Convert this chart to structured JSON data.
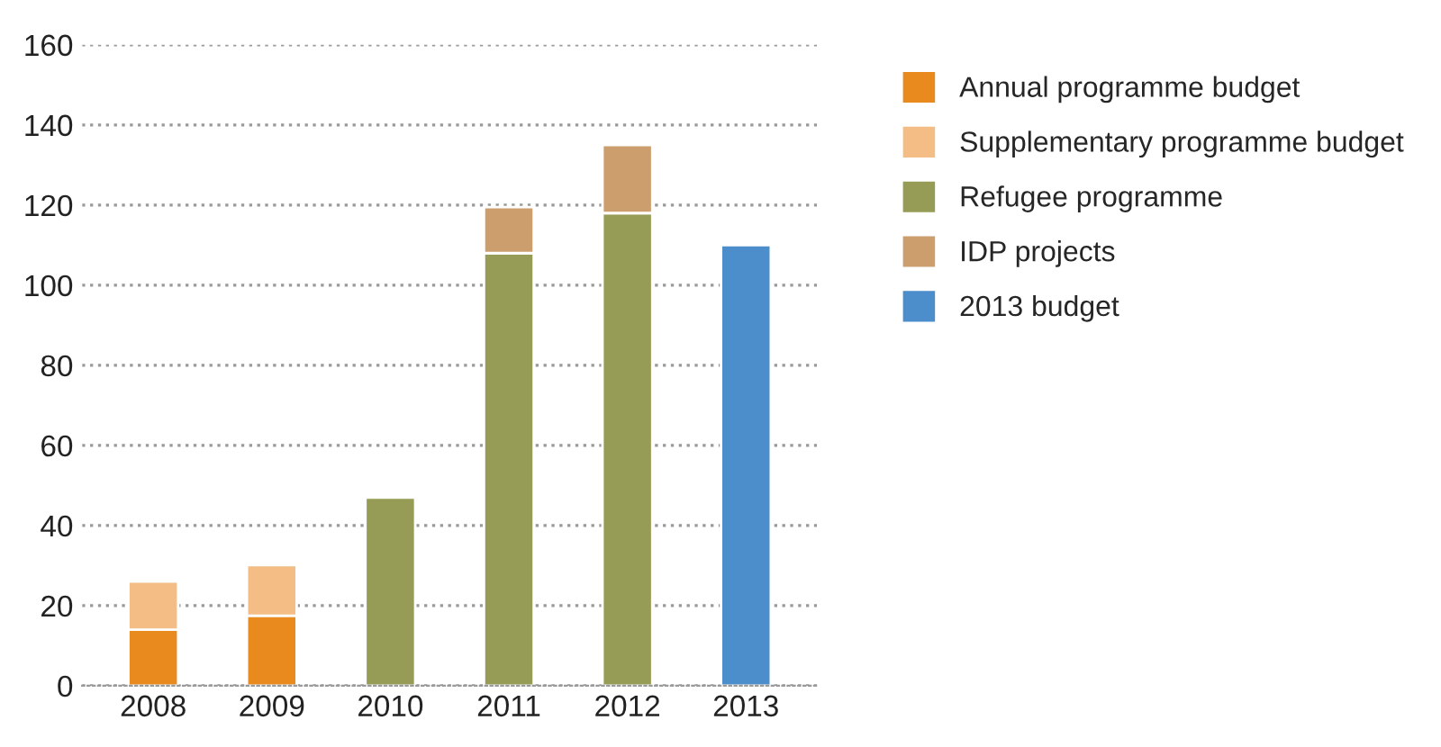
{
  "chart_data": {
    "type": "bar",
    "stacked": true,
    "categories": [
      "2008",
      "2009",
      "2010",
      "2011",
      "2012",
      "2013"
    ],
    "series": [
      {
        "name": "Annual programme budget",
        "color": "#e98a1f",
        "values": [
          14,
          17.5,
          null,
          null,
          null,
          null
        ]
      },
      {
        "name": "Supplementary programme budget",
        "color": "#f3bd85",
        "values": [
          12,
          12.6,
          null,
          null,
          null,
          null
        ]
      },
      {
        "name": "Refugee programme",
        "color": "#969c55",
        "values": [
          null,
          null,
          47,
          108,
          118,
          null
        ]
      },
      {
        "name": "IDP projects",
        "color": "#cc9e6e",
        "values": [
          null,
          null,
          null,
          11.5,
          17,
          null
        ]
      },
      {
        "name": "2013 budget",
        "color": "#4c8ecb",
        "values": [
          null,
          null,
          null,
          null,
          null,
          110
        ]
      }
    ],
    "ylim": [
      0,
      160
    ],
    "yticks": [
      0,
      20,
      40,
      60,
      80,
      100,
      120,
      140,
      160
    ],
    "grid": "y",
    "legend": "right"
  }
}
